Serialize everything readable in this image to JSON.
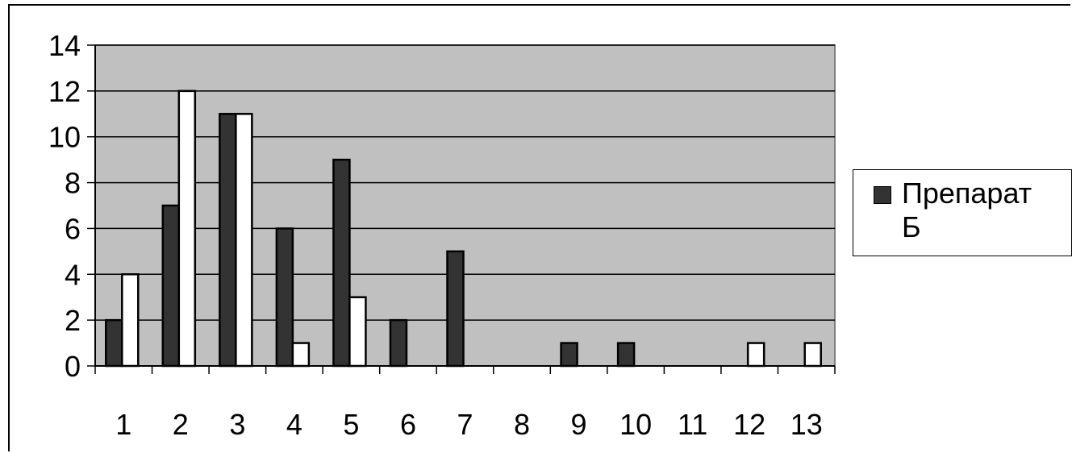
{
  "chart_data": {
    "type": "bar",
    "categories": [
      "1",
      "2",
      "3",
      "4",
      "5",
      "6",
      "7",
      "8",
      "9",
      "10",
      "11",
      "12",
      "13"
    ],
    "series": [
      {
        "name": "Препарат",
        "color": "#333333",
        "values": [
          2,
          7,
          11,
          6,
          9,
          2,
          5,
          0,
          1,
          1,
          0,
          0,
          0
        ]
      },
      {
        "name": "Б",
        "color": "#ffffff",
        "values": [
          4,
          12,
          11,
          1,
          3,
          0,
          0,
          0,
          0,
          0,
          0,
          1,
          1
        ]
      }
    ],
    "ylim": [
      0,
      14
    ],
    "yticks": [
      "0",
      "2",
      "4",
      "6",
      "8",
      "10",
      "12",
      "14"
    ],
    "grid": true,
    "plot_background": "#c0c0c0",
    "legend_position": "right",
    "legend_entries": [
      "Препарат",
      "Б"
    ]
  }
}
